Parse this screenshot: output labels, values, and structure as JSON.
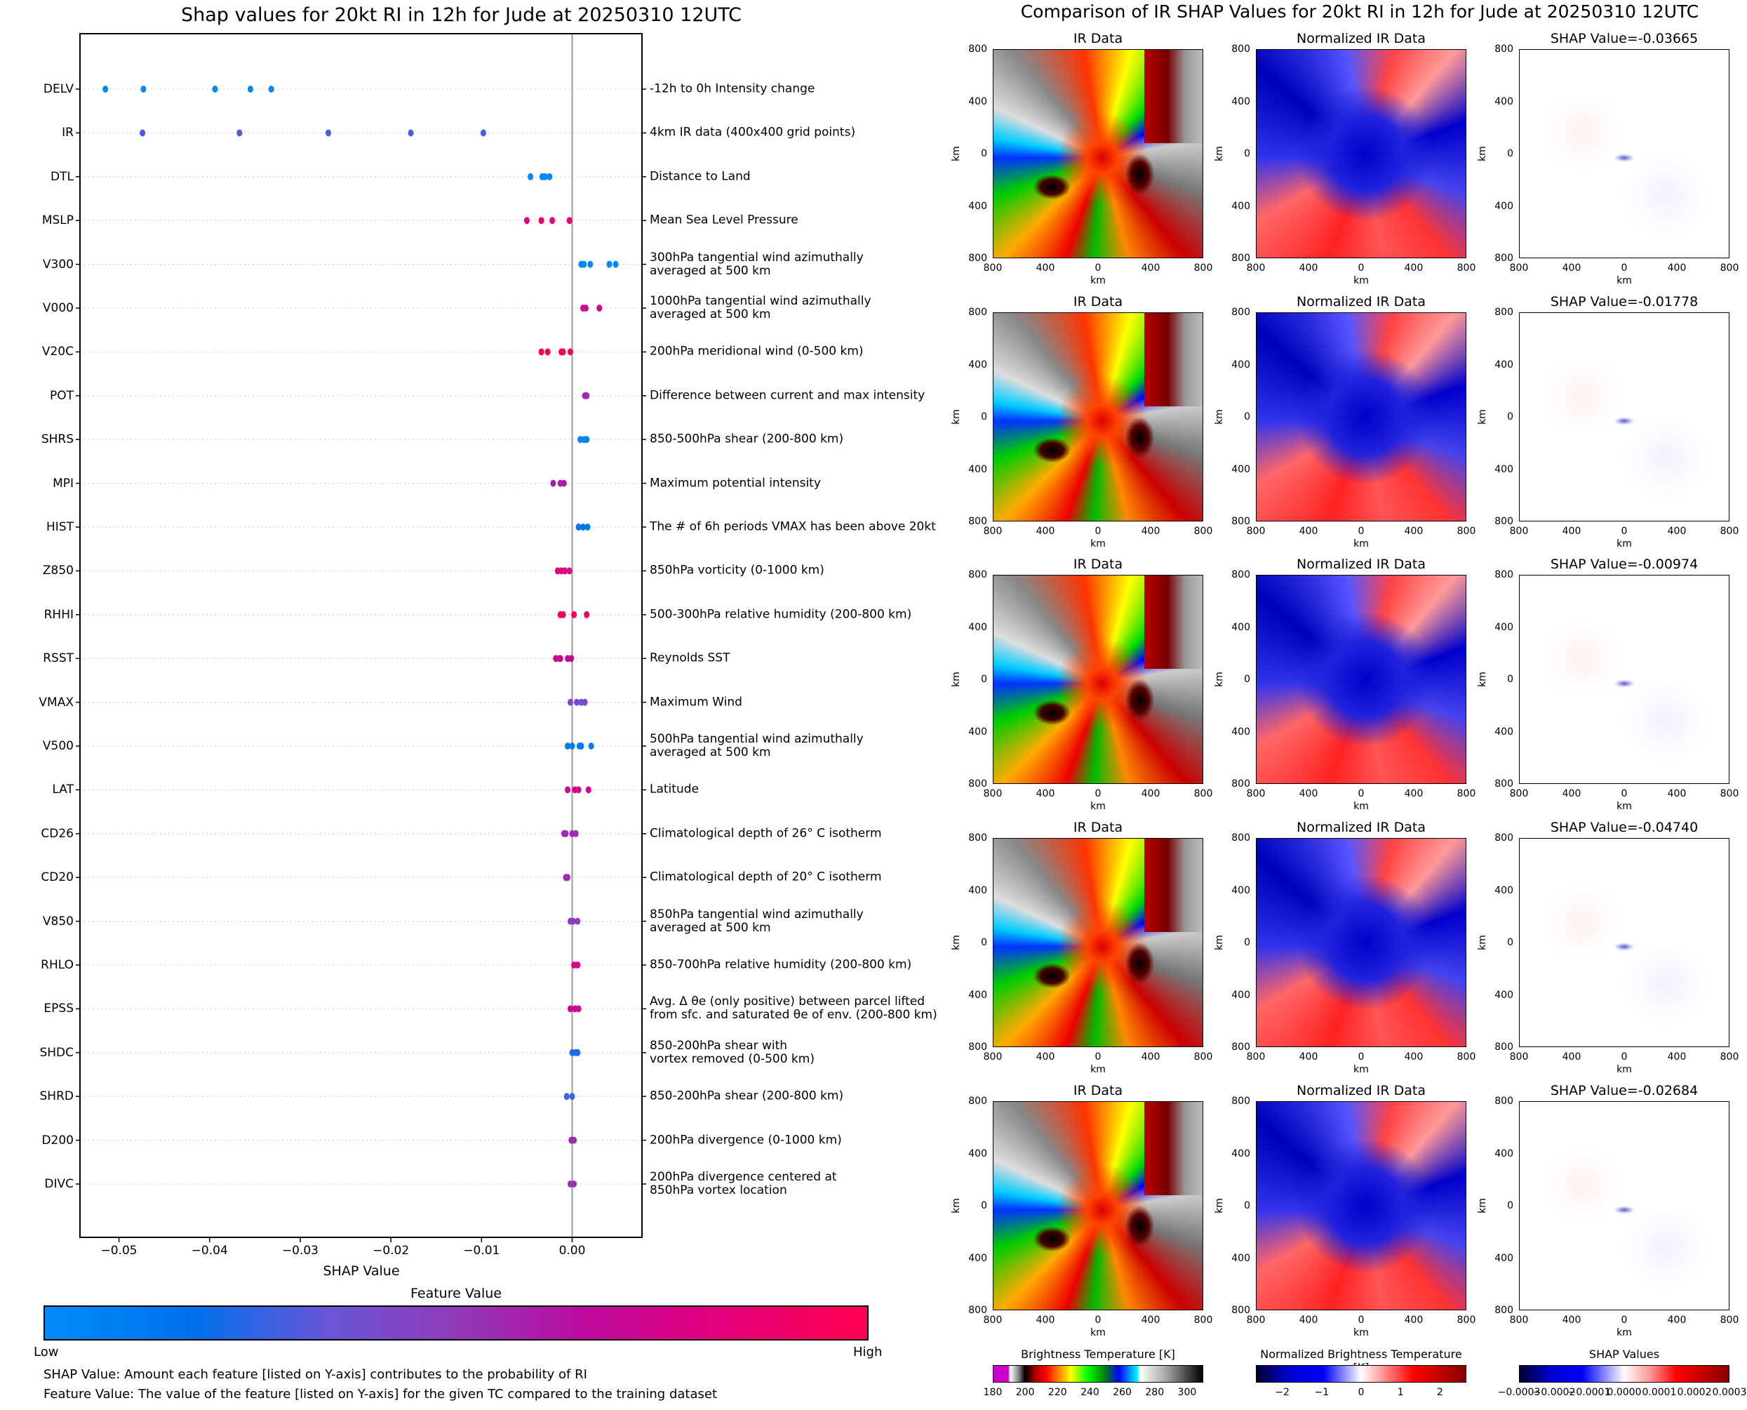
{
  "left": {
    "title": "Shap values for 20kt RI in 12h for Jude at 20250310 12UTC",
    "colorbar_title": "Feature Value",
    "colorbar_low": "Low",
    "colorbar_high": "High",
    "note1": "SHAP Value: Amount each feature [listed on Y-axis] contributes to the probability of RI",
    "note2": "Feature Value: The value of the feature [listed on Y-axis] for the given TC compared to the training dataset"
  },
  "chart_data": {
    "type": "scatter",
    "title": "Shap values for 20kt RI in 12h for Jude at 20250310 12UTC",
    "xlabel": "SHAP Value",
    "xlim": [
      -0.0543,
      0.0077
    ],
    "x_ticks": [
      {
        "v": -0.05,
        "label": "−0.05"
      },
      {
        "v": -0.04,
        "label": "−0.04"
      },
      {
        "v": -0.03,
        "label": "−0.03"
      },
      {
        "v": -0.02,
        "label": "−0.02"
      },
      {
        "v": -0.01,
        "label": "−0.01"
      },
      {
        "v": 0,
        "label": "0.00"
      }
    ],
    "colormap": {
      "low": "#008bfb",
      "high": "#ff0052"
    },
    "features": [
      {
        "name": "DELV",
        "desc": "-12h to 0h Intensity change",
        "fv": 0.03,
        "shap": [
          -0.0515,
          -0.0473,
          -0.0394,
          -0.0355,
          -0.0332
        ]
      },
      {
        "name": "IR",
        "desc": "4km IR data (400x400 grid points)",
        "fv": 0.3,
        "shap": [
          -0.0474,
          -0.0367,
          -0.0269,
          -0.0178,
          -0.0098
        ]
      },
      {
        "name": "DTL",
        "desc": "Distance to Land",
        "fv": 0.03,
        "shap": [
          -0.0046,
          -0.0033,
          -0.003,
          -0.0025
        ]
      },
      {
        "name": "MSLP",
        "desc": "Mean Sea Level Pressure",
        "fv": 0.85,
        "shap": [
          -0.005,
          -0.0034,
          -0.0022,
          -0.0003
        ]
      },
      {
        "name": "V300",
        "desc": "300hPa tangential wind azimuthally\naveraged at 500 km",
        "fv": 0.03,
        "shap": [
          0.001,
          0.0013,
          0.002,
          0.0041,
          0.0048
        ]
      },
      {
        "name": "V000",
        "desc": "1000hPa tangential wind azimuthally\naveraged at 500 km",
        "fv": 0.72,
        "shap": [
          0.0012,
          0.0015,
          0.003
        ]
      },
      {
        "name": "V20C",
        "desc": "200hPa meridional wind (0-500 km)",
        "fv": 0.95,
        "shap": [
          -0.0034,
          -0.0027,
          -0.0012,
          -0.001,
          -0.0002
        ]
      },
      {
        "name": "POT",
        "desc": "Difference between current and max intensity",
        "fv": 0.55,
        "shap": [
          0.0014,
          0.0016
        ]
      },
      {
        "name": "SHRS",
        "desc": "850-500hPa shear (200-800 km)",
        "fv": 0.05,
        "shap": [
          0.0009,
          0.0013,
          0.0016
        ]
      },
      {
        "name": "MPI",
        "desc": "Maximum potential intensity",
        "fv": 0.6,
        "shap": [
          -0.0021,
          -0.0013,
          -0.0009
        ]
      },
      {
        "name": "HIST",
        "desc": "The # of 6h periods VMAX has been above 20kt",
        "fv": 0.14,
        "shap": [
          0.0007,
          0.0012,
          0.0017
        ]
      },
      {
        "name": "Z850",
        "desc": "850hPa vorticity (0-1000 km)",
        "fv": 0.8,
        "shap": [
          -0.0016,
          -0.0012,
          -0.0008,
          -0.0003
        ]
      },
      {
        "name": "RHHI",
        "desc": "500-300hPa relative humidity (200-800 km)",
        "fv": 0.93,
        "shap": [
          -0.0013,
          -0.001,
          0.0002,
          0.0016
        ]
      },
      {
        "name": "RSST",
        "desc": "Reynolds SST",
        "fv": 0.7,
        "shap": [
          -0.0018,
          -0.0014,
          -0.0013,
          -0.0005,
          -0.0001
        ]
      },
      {
        "name": "VMAX",
        "desc": "Maximum Wind",
        "fv": 0.4,
        "shap": [
          -0.0002,
          0.0005,
          0.001,
          0.0014
        ]
      },
      {
        "name": "V500",
        "desc": "500hPa tangential wind azimuthally\naveraged at 500 km",
        "fv": 0.1,
        "shap": [
          -0.0005,
          0.0,
          0.0008,
          0.001,
          0.0021
        ]
      },
      {
        "name": "LAT",
        "desc": "Latitude",
        "fv": 0.75,
        "shap": [
          -0.0005,
          0.0003,
          0.0007,
          0.0018
        ]
      },
      {
        "name": "CD26",
        "desc": "Climatological depth of 26° C isotherm",
        "fv": 0.55,
        "shap": [
          -0.0009,
          -0.0007,
          0.0,
          0.0004
        ]
      },
      {
        "name": "CD20",
        "desc": "Climatological depth of 20° C isotherm",
        "fv": 0.55,
        "shap": [
          -0.0007,
          -0.0005
        ]
      },
      {
        "name": "V850",
        "desc": "850hPa tangential wind azimuthally\naveraged at 500 km",
        "fv": 0.48,
        "shap": [
          -0.0002,
          0.0001,
          0.0006
        ]
      },
      {
        "name": "RHLO",
        "desc": "850-700hPa relative humidity (200-800 km)",
        "fv": 0.75,
        "shap": [
          0.0002,
          0.0006
        ]
      },
      {
        "name": "EPSS",
        "desc": "Avg. Δ θe (only positive) between parcel lifted\nfrom sfc. and saturated θe of env. (200-800 km)",
        "fv": 0.73,
        "shap": [
          -0.0002,
          0.0003,
          0.0007
        ]
      },
      {
        "name": "SHDC",
        "desc": "850-200hPa shear with\nvortex removed (0-500 km)",
        "fv": 0.22,
        "shap": [
          0.0,
          0.0004,
          0.0006
        ]
      },
      {
        "name": "SHRD",
        "desc": "850-200hPa shear (200-800 km)",
        "fv": 0.28,
        "shap": [
          -0.0006,
          0.0
        ]
      },
      {
        "name": "D200",
        "desc": "200hPa divergence (0-1000 km)",
        "fv": 0.55,
        "shap": [
          -0.0001,
          0.0002
        ]
      },
      {
        "name": "DIVC",
        "desc": "200hPa divergence centered at\n850hPa vortex location",
        "fv": 0.52,
        "shap": [
          -0.0002,
          0.0002
        ]
      }
    ]
  },
  "right": {
    "title": "Comparison of IR SHAP Values for 20kt RI in 12h for Jude at 20250310 12UTC",
    "col_titles": [
      "IR Data",
      "Normalized IR Data"
    ],
    "shap_titles": [
      "SHAP Value=-0.03665",
      "SHAP Value=-0.01778",
      "SHAP Value=-0.00974",
      "SHAP Value=-0.04740",
      "SHAP Value=-0.02684"
    ],
    "ticks": [
      "800",
      "400",
      "0",
      "400",
      "800"
    ],
    "axis_label": "km",
    "colorbars": [
      {
        "title": "Brightness Temperature [K]",
        "range": [
          180,
          310
        ],
        "ticks": [
          "180",
          "200",
          "220",
          "240",
          "260",
          "280",
          "300"
        ],
        "tick_values": [
          180,
          200,
          220,
          240,
          260,
          280,
          300
        ]
      },
      {
        "title": "Normalized Brightness Temperature [K]",
        "range": [
          -2.67,
          2.67
        ],
        "ticks": [
          "−2",
          "−1",
          "0",
          "1",
          "2"
        ],
        "tick_values": [
          -2,
          -1,
          0,
          1,
          2
        ]
      },
      {
        "title": "SHAP Values",
        "range": [
          -0.0003,
          0.0003
        ],
        "ticks": [
          "−0.0003",
          "−0.0002",
          "−0.0001",
          "0.0000",
          "0.0001",
          "0.0002",
          "0.0003"
        ],
        "tick_values": [
          -0.0003,
          -0.0002,
          -0.0001,
          0,
          0.0001,
          0.0002,
          0.0003
        ]
      }
    ]
  }
}
